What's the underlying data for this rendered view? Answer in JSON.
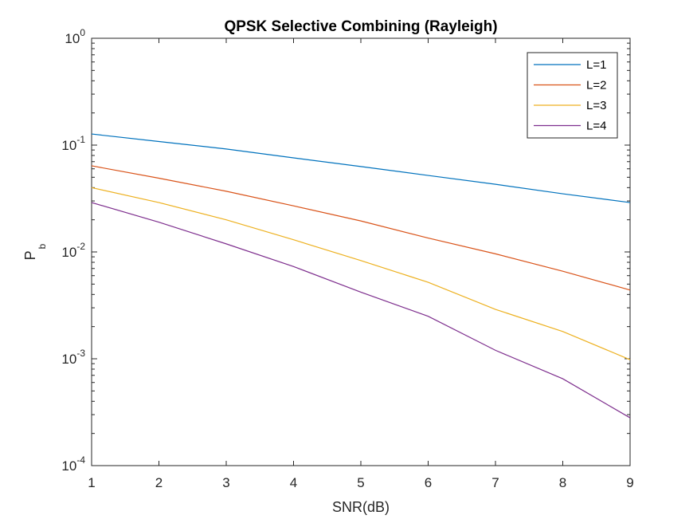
{
  "chart_data": {
    "type": "line",
    "title": "QPSK Selective Combining (Rayleigh)",
    "xlabel": "SNR(dB)",
    "ylabel": {
      "main": "P",
      "sub": "b"
    },
    "xlim": [
      1,
      9
    ],
    "ylim": [
      0.0001,
      1
    ],
    "yscale": "log",
    "grid": false,
    "legend_position": "top-right",
    "x_ticks": [
      "1",
      "2",
      "3",
      "4",
      "5",
      "6",
      "7",
      "8",
      "9"
    ],
    "y_ticks": [
      {
        "base": "10",
        "exp": "-4",
        "value": 0.0001
      },
      {
        "base": "10",
        "exp": "-3",
        "value": 0.001
      },
      {
        "base": "10",
        "exp": "-2",
        "value": 0.01
      },
      {
        "base": "10",
        "exp": "-1",
        "value": 0.1
      },
      {
        "base": "10",
        "exp": "0",
        "value": 1
      }
    ],
    "x": [
      1,
      2,
      3,
      4,
      5,
      6,
      7,
      8,
      9
    ],
    "series": [
      {
        "name": "L=1",
        "color": "#0072BD",
        "values": [
          0.127,
          0.108,
          0.092,
          0.076,
          0.063,
          0.052,
          0.043,
          0.035,
          0.029
        ]
      },
      {
        "name": "L=2",
        "color": "#D95319",
        "values": [
          0.064,
          0.049,
          0.037,
          0.027,
          0.0195,
          0.0135,
          0.0096,
          0.0066,
          0.0044
        ]
      },
      {
        "name": "L=3",
        "color": "#EDB120",
        "values": [
          0.04,
          0.029,
          0.02,
          0.013,
          0.0083,
          0.0052,
          0.0029,
          0.0018,
          0.00098
        ]
      },
      {
        "name": "L=4",
        "color": "#7E2F8E",
        "values": [
          0.029,
          0.019,
          0.0119,
          0.0073,
          0.0042,
          0.0025,
          0.0012,
          0.00065,
          0.00028
        ]
      }
    ]
  }
}
